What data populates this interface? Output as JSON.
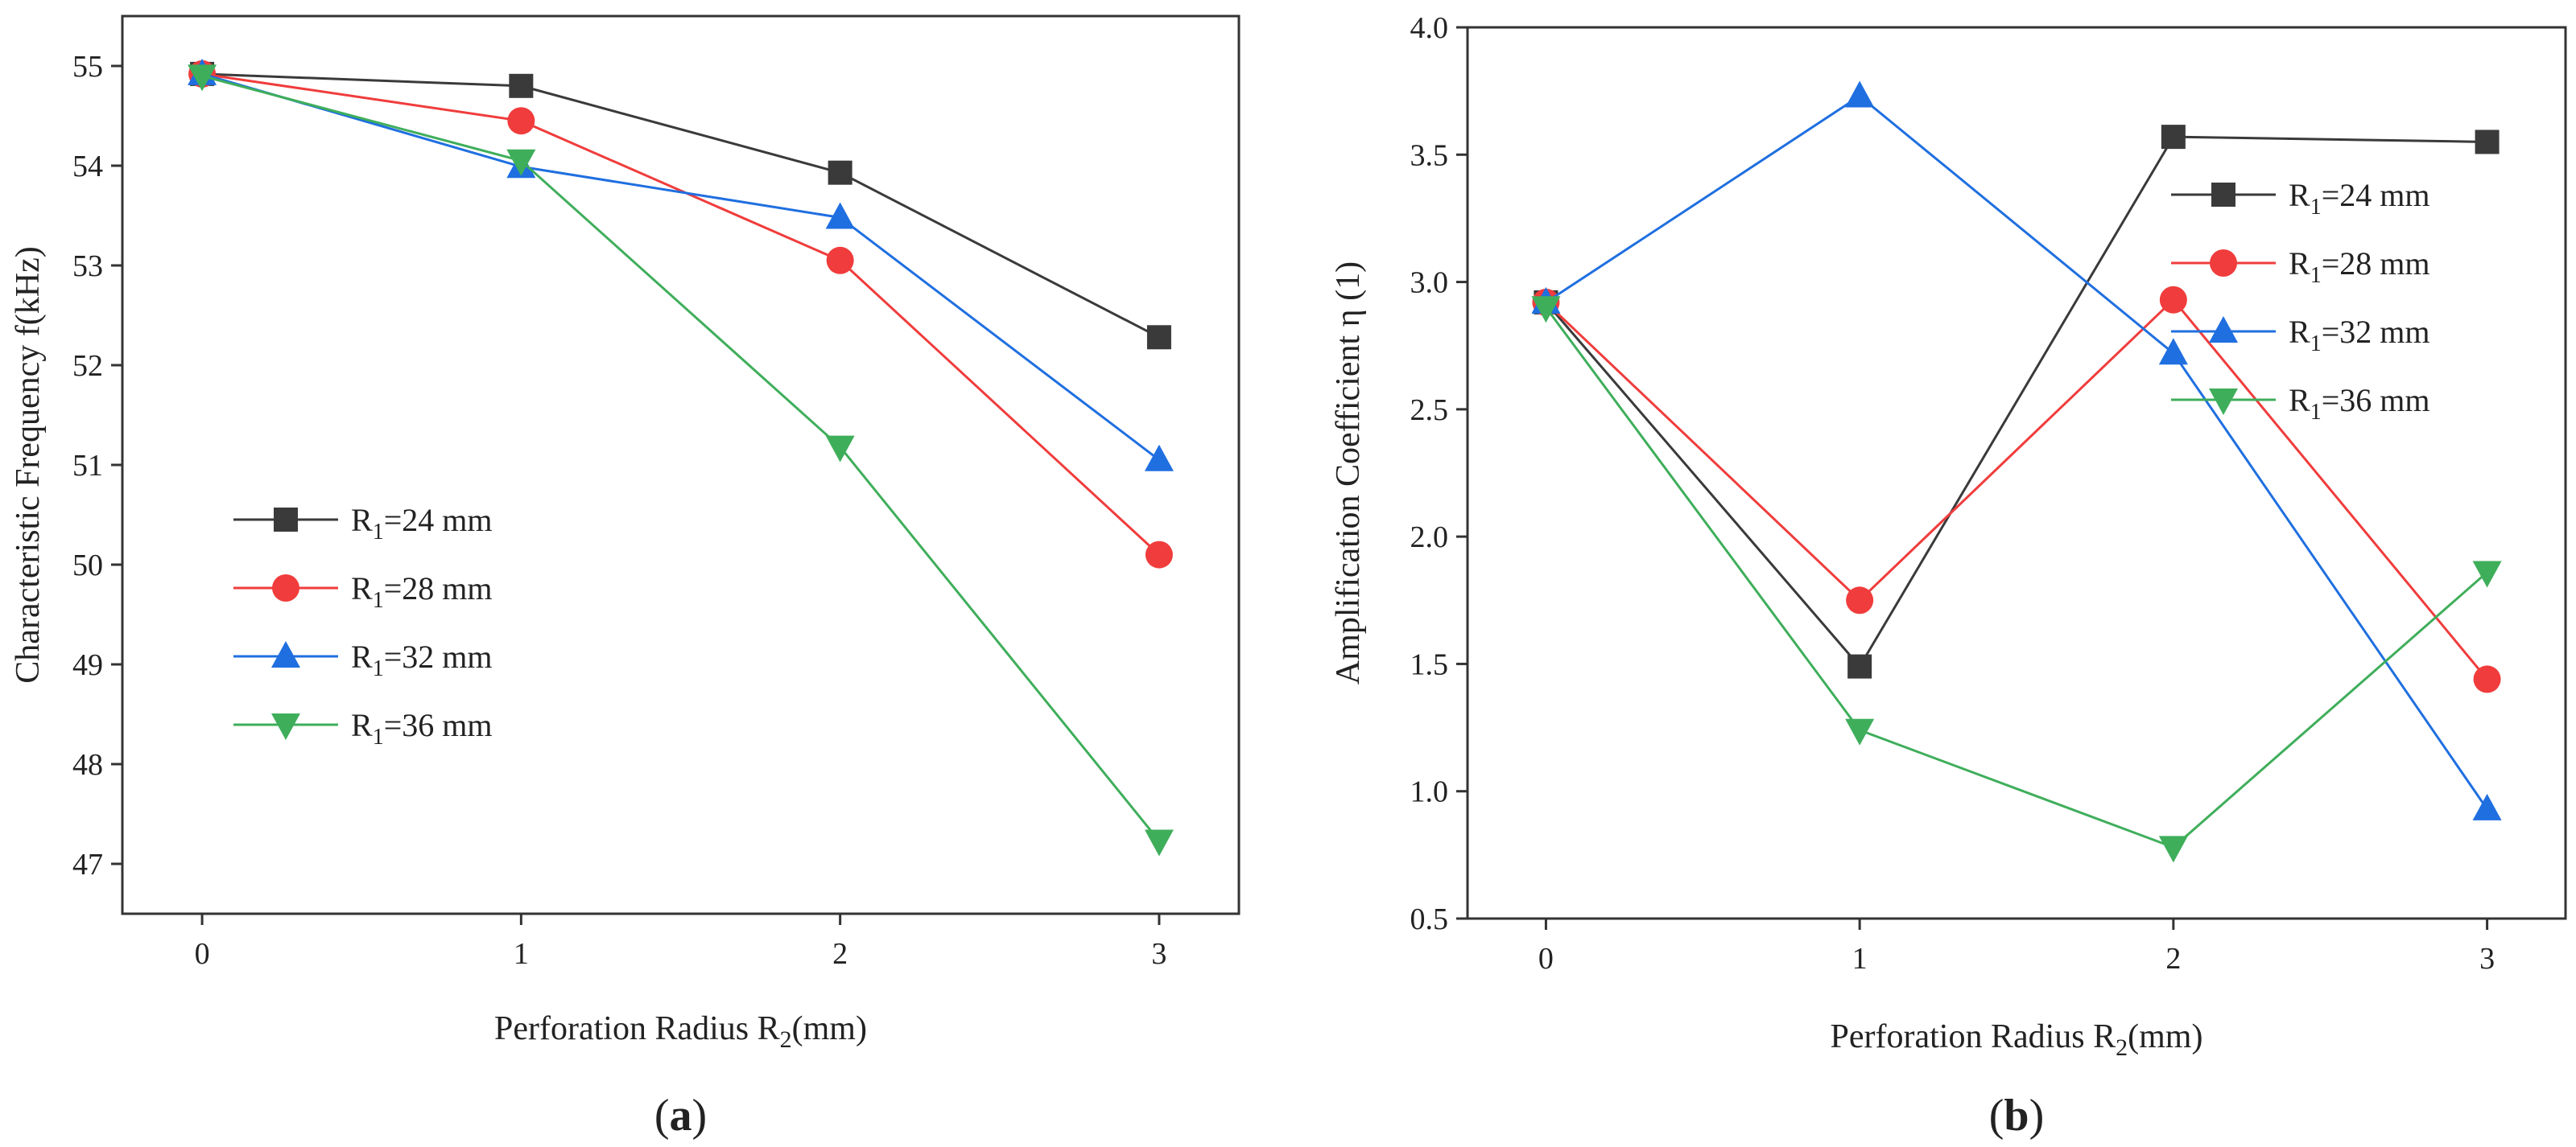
{
  "chart_data": [
    {
      "id": "a",
      "type": "line",
      "panel_label": "a",
      "xlabel_prefix": "Perforation Radius  R",
      "xlabel_sub": "2",
      "xlabel_suffix": "(mm)",
      "ylabel": "Characteristic Frequency  f(kHz)",
      "x": [
        0,
        1,
        2,
        3
      ],
      "xlim": [
        -0.25,
        3.25
      ],
      "ylim": [
        46.5,
        55.5
      ],
      "xticks": [
        "0",
        "1",
        "2",
        "3"
      ],
      "yticks": [
        "47",
        "48",
        "49",
        "50",
        "51",
        "52",
        "53",
        "54",
        "55"
      ],
      "legend_position": "middle-left",
      "series": [
        {
          "name_prefix": "R",
          "name_sub": "1",
          "name_suffix": "=24 mm",
          "color": "#3a3a3a",
          "marker": "square",
          "values": [
            54.92,
            54.8,
            53.93,
            52.28
          ]
        },
        {
          "name_prefix": "R",
          "name_sub": "1",
          "name_suffix": "=28 mm",
          "color": "#f03c3c",
          "marker": "circle",
          "values": [
            54.92,
            54.45,
            53.05,
            50.1
          ]
        },
        {
          "name_prefix": "R",
          "name_sub": "1",
          "name_suffix": "=32 mm",
          "color": "#1f6fe0",
          "marker": "triangle-up",
          "values": [
            54.92,
            53.99,
            53.48,
            51.05
          ]
        },
        {
          "name_prefix": "R",
          "name_sub": "1",
          "name_suffix": "=36 mm",
          "color": "#3fae5b",
          "marker": "triangle-down",
          "values": [
            54.9,
            54.05,
            51.18,
            47.23
          ]
        }
      ]
    },
    {
      "id": "b",
      "type": "line",
      "panel_label": "b",
      "xlabel_prefix": "Perforation Radius  R",
      "xlabel_sub": "2",
      "xlabel_suffix": "(mm)",
      "ylabel": "Amplification Coefficient  η (1)",
      "x": [
        0,
        1,
        2,
        3
      ],
      "xlim": [
        -0.25,
        3.25
      ],
      "ylim": [
        0.5,
        4.0
      ],
      "xticks": [
        "0",
        "1",
        "2",
        "3"
      ],
      "yticks": [
        "0.5",
        "1.0",
        "1.5",
        "2.0",
        "2.5",
        "3.0",
        "3.5",
        "4.0"
      ],
      "legend_position": "top-right",
      "series": [
        {
          "name_prefix": "R",
          "name_sub": "1",
          "name_suffix": "=24 mm",
          "color": "#3a3a3a",
          "marker": "square",
          "values": [
            2.92,
            1.49,
            3.57,
            3.55
          ]
        },
        {
          "name_prefix": "R",
          "name_sub": "1",
          "name_suffix": "=28 mm",
          "color": "#f03c3c",
          "marker": "circle",
          "values": [
            2.92,
            1.75,
            2.93,
            1.44
          ]
        },
        {
          "name_prefix": "R",
          "name_sub": "1",
          "name_suffix": "=32 mm",
          "color": "#1f6fe0",
          "marker": "triangle-up",
          "values": [
            2.92,
            3.73,
            2.72,
            0.93
          ]
        },
        {
          "name_prefix": "R",
          "name_sub": "1",
          "name_suffix": "=36 mm",
          "color": "#3fae5b",
          "marker": "triangle-down",
          "values": [
            2.9,
            1.24,
            0.78,
            1.86
          ]
        }
      ]
    }
  ]
}
